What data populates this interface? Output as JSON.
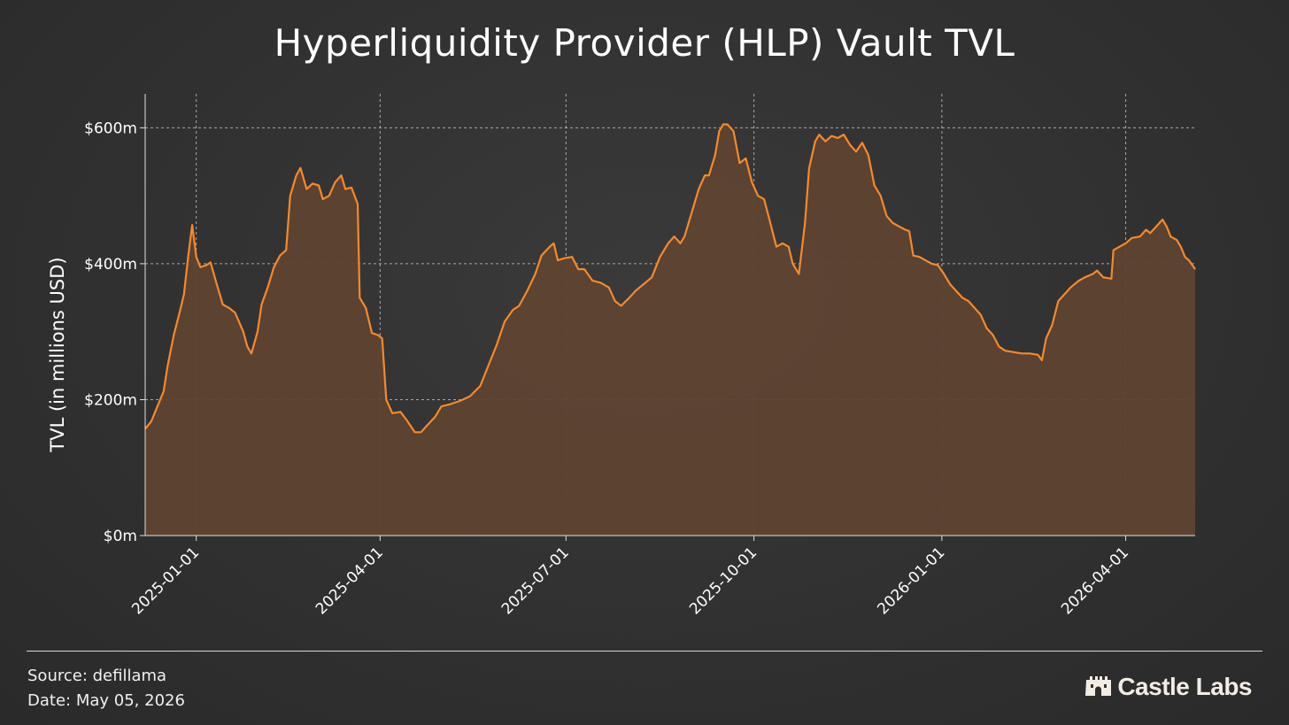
{
  "title": "Hyperliquidity Provider (HLP) Vault TVL",
  "footer": {
    "source_label": "Source:",
    "source": "defillama",
    "date_label": "Date:",
    "date": "May 05, 2026"
  },
  "brand": {
    "name": "Castle Labs",
    "icon": "castle-icon",
    "color": "#f2ede4"
  },
  "colors": {
    "line": "#f7892a",
    "fill": "#5e4331",
    "background": "#333333",
    "grid": "#cfcfcf"
  },
  "chart_data": {
    "type": "area",
    "title": "Hyperliquidity Provider (HLP) Vault TVL",
    "xlabel": "",
    "ylabel": "TVL (in millions USD)",
    "x_range": [
      "2024-12-07",
      "2026-05-05"
    ],
    "ylim": [
      0,
      650
    ],
    "x_ticks": [
      "2025-01-01",
      "2025-04-01",
      "2025-07-01",
      "2025-10-01",
      "2026-01-01",
      "2026-04-01"
    ],
    "y_ticks": [
      {
        "value": 0,
        "label": "$0m"
      },
      {
        "value": 200,
        "label": "$200m"
      },
      {
        "value": 400,
        "label": "$400m"
      },
      {
        "value": 600,
        "label": "$600m"
      }
    ],
    "grid": true,
    "series": [
      {
        "values": [
          [
            "2024-12-07",
            157
          ],
          [
            "2024-12-10",
            168
          ],
          [
            "2024-12-13",
            190
          ],
          [
            "2024-12-16",
            212
          ],
          [
            "2024-12-18",
            250
          ],
          [
            "2024-12-21",
            295
          ],
          [
            "2024-12-24",
            330
          ],
          [
            "2024-12-26",
            355
          ],
          [
            "2024-12-28",
            410
          ],
          [
            "2024-12-30",
            457
          ],
          [
            "2025-01-01",
            410
          ],
          [
            "2025-01-03",
            395
          ],
          [
            "2025-01-06",
            398
          ],
          [
            "2025-01-08",
            402
          ],
          [
            "2025-01-11",
            370
          ],
          [
            "2025-01-14",
            340
          ],
          [
            "2025-01-17",
            335
          ],
          [
            "2025-01-20",
            328
          ],
          [
            "2025-01-24",
            300
          ],
          [
            "2025-01-26",
            278
          ],
          [
            "2025-01-28",
            268
          ],
          [
            "2025-01-31",
            300
          ],
          [
            "2025-02-02",
            340
          ],
          [
            "2025-02-05",
            365
          ],
          [
            "2025-02-08",
            395
          ],
          [
            "2025-02-11",
            412
          ],
          [
            "2025-02-14",
            420
          ],
          [
            "2025-02-16",
            500
          ],
          [
            "2025-02-19",
            530
          ],
          [
            "2025-02-21",
            541
          ],
          [
            "2025-02-24",
            510
          ],
          [
            "2025-02-27",
            518
          ],
          [
            "2025-03-02",
            515
          ],
          [
            "2025-03-04",
            495
          ],
          [
            "2025-03-07",
            500
          ],
          [
            "2025-03-10",
            520
          ],
          [
            "2025-03-13",
            530
          ],
          [
            "2025-03-15",
            510
          ],
          [
            "2025-03-18",
            512
          ],
          [
            "2025-03-21",
            488
          ],
          [
            "2025-03-22",
            350
          ],
          [
            "2025-03-25",
            335
          ],
          [
            "2025-03-28",
            298
          ],
          [
            "2025-03-31",
            295
          ],
          [
            "2025-04-02",
            290
          ],
          [
            "2025-04-04",
            200
          ],
          [
            "2025-04-07",
            180
          ],
          [
            "2025-04-11",
            182
          ],
          [
            "2025-04-14",
            170
          ],
          [
            "2025-04-18",
            152
          ],
          [
            "2025-04-21",
            152
          ],
          [
            "2025-04-24",
            162
          ],
          [
            "2025-04-28",
            175
          ],
          [
            "2025-05-01",
            190
          ],
          [
            "2025-05-05",
            193
          ],
          [
            "2025-05-10",
            198
          ],
          [
            "2025-05-15",
            205
          ],
          [
            "2025-05-20",
            220
          ],
          [
            "2025-05-24",
            250
          ],
          [
            "2025-05-28",
            280
          ],
          [
            "2025-06-01",
            315
          ],
          [
            "2025-06-05",
            332
          ],
          [
            "2025-06-08",
            338
          ],
          [
            "2025-06-12",
            360
          ],
          [
            "2025-06-16",
            385
          ],
          [
            "2025-06-19",
            412
          ],
          [
            "2025-06-23",
            425
          ],
          [
            "2025-06-25",
            430
          ],
          [
            "2025-06-27",
            405
          ],
          [
            "2025-06-30",
            408
          ],
          [
            "2025-07-04",
            410
          ],
          [
            "2025-07-07",
            392
          ],
          [
            "2025-07-10",
            392
          ],
          [
            "2025-07-14",
            375
          ],
          [
            "2025-07-18",
            372
          ],
          [
            "2025-07-22",
            365
          ],
          [
            "2025-07-25",
            345
          ],
          [
            "2025-07-28",
            338
          ],
          [
            "2025-08-01",
            350
          ],
          [
            "2025-08-04",
            360
          ],
          [
            "2025-08-08",
            370
          ],
          [
            "2025-08-12",
            380
          ],
          [
            "2025-08-16",
            410
          ],
          [
            "2025-08-20",
            430
          ],
          [
            "2025-08-23",
            440
          ],
          [
            "2025-08-26",
            430
          ],
          [
            "2025-08-28",
            440
          ],
          [
            "2025-09-01",
            480
          ],
          [
            "2025-09-04",
            510
          ],
          [
            "2025-09-07",
            530
          ],
          [
            "2025-09-09",
            530
          ],
          [
            "2025-09-12",
            560
          ],
          [
            "2025-09-14",
            595
          ],
          [
            "2025-09-16",
            605
          ],
          [
            "2025-09-18",
            605
          ],
          [
            "2025-09-21",
            595
          ],
          [
            "2025-09-24",
            548
          ],
          [
            "2025-09-27",
            555
          ],
          [
            "2025-09-30",
            520
          ],
          [
            "2025-10-03",
            500
          ],
          [
            "2025-10-06",
            495
          ],
          [
            "2025-10-09",
            460
          ],
          [
            "2025-10-12",
            425
          ],
          [
            "2025-10-15",
            430
          ],
          [
            "2025-10-18",
            425
          ],
          [
            "2025-10-20",
            400
          ],
          [
            "2025-10-23",
            385
          ],
          [
            "2025-10-26",
            460
          ],
          [
            "2025-10-28",
            540
          ],
          [
            "2025-10-31",
            580
          ],
          [
            "2025-11-02",
            590
          ],
          [
            "2025-11-05",
            580
          ],
          [
            "2025-11-08",
            588
          ],
          [
            "2025-11-11",
            585
          ],
          [
            "2025-11-14",
            590
          ],
          [
            "2025-11-17",
            575
          ],
          [
            "2025-11-20",
            565
          ],
          [
            "2025-11-23",
            578
          ],
          [
            "2025-11-26",
            560
          ],
          [
            "2025-11-29",
            515
          ],
          [
            "2025-12-02",
            500
          ],
          [
            "2025-12-05",
            470
          ],
          [
            "2025-12-08",
            460
          ],
          [
            "2025-12-11",
            455
          ],
          [
            "2025-12-14",
            450
          ],
          [
            "2025-12-16",
            448
          ],
          [
            "2025-12-18",
            412
          ],
          [
            "2025-12-21",
            410
          ],
          [
            "2025-12-24",
            405
          ],
          [
            "2025-12-27",
            400
          ],
          [
            "2025-12-30",
            398
          ],
          [
            "2026-01-02",
            385
          ],
          [
            "2026-01-05",
            370
          ],
          [
            "2026-01-08",
            360
          ],
          [
            "2026-01-11",
            350
          ],
          [
            "2026-01-14",
            345
          ],
          [
            "2026-01-17",
            335
          ],
          [
            "2026-01-20",
            325
          ],
          [
            "2026-01-23",
            305
          ],
          [
            "2026-01-26",
            295
          ],
          [
            "2026-01-29",
            278
          ],
          [
            "2026-02-01",
            272
          ],
          [
            "2026-02-05",
            270
          ],
          [
            "2026-02-09",
            268
          ],
          [
            "2026-02-13",
            268
          ],
          [
            "2026-02-17",
            266
          ],
          [
            "2026-02-19",
            258
          ],
          [
            "2026-02-21",
            290
          ],
          [
            "2026-02-24",
            310
          ],
          [
            "2026-02-27",
            345
          ],
          [
            "2026-03-02",
            355
          ],
          [
            "2026-03-05",
            365
          ],
          [
            "2026-03-09",
            375
          ],
          [
            "2026-03-12",
            380
          ],
          [
            "2026-03-16",
            385
          ],
          [
            "2026-03-18",
            390
          ],
          [
            "2026-03-21",
            380
          ],
          [
            "2026-03-25",
            378
          ],
          [
            "2026-03-26",
            420
          ],
          [
            "2026-03-29",
            425
          ],
          [
            "2026-04-01",
            430
          ],
          [
            "2026-04-04",
            438
          ],
          [
            "2026-04-08",
            440
          ],
          [
            "2026-04-11",
            450
          ],
          [
            "2026-04-13",
            445
          ],
          [
            "2026-04-16",
            455
          ],
          [
            "2026-04-19",
            465
          ],
          [
            "2026-04-21",
            455
          ],
          [
            "2026-04-23",
            440
          ],
          [
            "2026-04-26",
            435
          ],
          [
            "2026-04-28",
            425
          ],
          [
            "2026-04-30",
            410
          ],
          [
            "2026-05-02",
            405
          ],
          [
            "2026-05-05",
            392
          ]
        ]
      }
    ]
  }
}
